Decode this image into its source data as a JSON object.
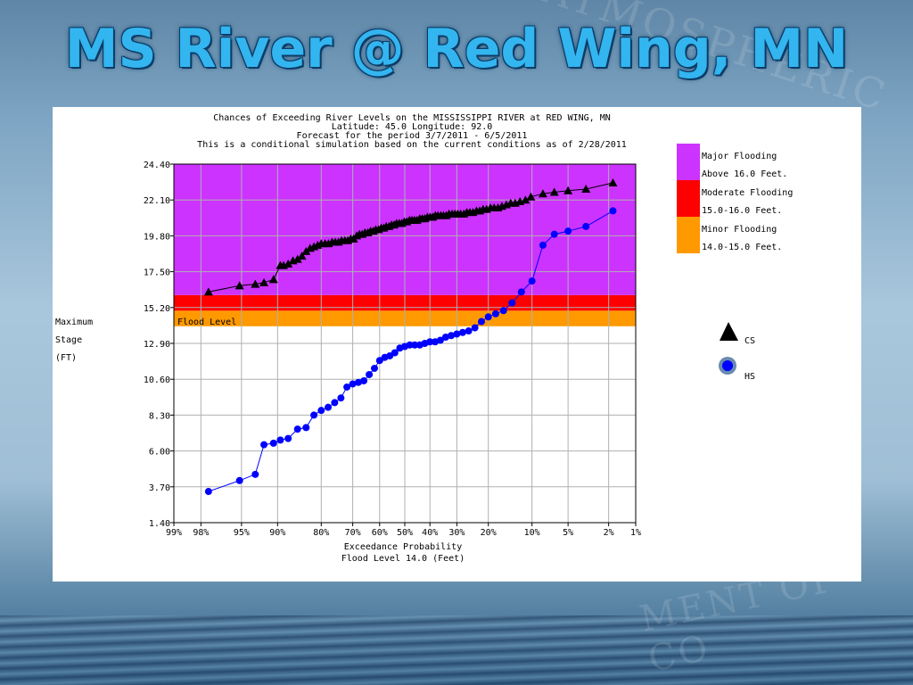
{
  "slide": {
    "title": "MS River @ Red Wing, MN",
    "watermark_top": "ATMOSPHERIC",
    "watermark_bottom": "MENT OF CO"
  },
  "chart_data": {
    "type": "scatter",
    "title_lines": [
      "Chances of Exceeding River Levels on the MISSISSIPPI RIVER at RED WING, MN",
      "Latitude: 45.0     Longitude:  92.0",
      "Forecast for the period 3/7/2011 - 6/5/2011",
      "This is a conditional simulation based on the current conditions as of 2/28/2011"
    ],
    "ylabel_lines": [
      "Maximum",
      "Stage",
      "(FT)"
    ],
    "xlabel_lines": [
      "Exceedance Probability",
      "Flood Level 14.0 (Feet)"
    ],
    "ylim": [
      1.4,
      24.4
    ],
    "yticks": [
      1.4,
      3.7,
      6.0,
      8.3,
      10.6,
      12.9,
      15.2,
      17.5,
      19.8,
      22.1,
      24.4
    ],
    "ytick_labels": [
      "1.40",
      "3.70",
      "6.00",
      "8.30",
      "10.60",
      "12.90",
      "15.20",
      "17.50",
      "19.80",
      "22.10",
      "24.40"
    ],
    "xlim": [
      99,
      1
    ],
    "xscale": "normal-probability",
    "xticks": [
      99,
      98,
      95,
      90,
      80,
      70,
      60,
      50,
      40,
      30,
      20,
      10,
      5,
      2,
      1
    ],
    "xtick_labels": [
      "99%",
      "98%",
      "95%",
      "90%",
      "80%",
      "70%",
      "60%",
      "50%",
      "40%",
      "30%",
      "20%",
      "10%",
      "5%",
      "2%",
      "1%"
    ],
    "grid": true,
    "flood_level": 14.0,
    "flood_level_label": "Flood Level",
    "bands": [
      {
        "from": 14.0,
        "to": 15.0,
        "color": "#ff9900"
      },
      {
        "from": 15.0,
        "to": 16.0,
        "color": "#ff0000"
      },
      {
        "from": 16.0,
        "to": 24.4,
        "color": "#cc33ff"
      }
    ],
    "legend_flood": [
      {
        "line1": "Major Flooding",
        "line2": "Above 16.0 Feet.",
        "color": "#cc33ff"
      },
      {
        "line1": "Moderate Flooding",
        "line2": "15.0-16.0 Feet.",
        "color": "#ff0000"
      },
      {
        "line1": "Minor Flooding",
        "line2": "14.0-15.0 Feet.",
        "color": "#ff9900"
      }
    ],
    "legend_series_placement": "right",
    "series": [
      {
        "name": "CS",
        "marker": "triangle",
        "color": "#000000",
        "x": [
          97.6,
          95.2,
          93.4,
          92.2,
          90.7,
          89.5,
          88.9,
          88.0,
          87.0,
          86.0,
          85.0,
          84.0,
          83.0,
          82.0,
          81.0,
          80.0,
          78.9,
          77.9,
          76.8,
          75.8,
          74.8,
          73.8,
          72.7,
          71.7,
          70.7,
          69.7,
          68.6,
          67.6,
          66.6,
          65.6,
          64.5,
          63.5,
          62.5,
          61.5,
          60.4,
          59.4,
          58.4,
          57.4,
          56.3,
          55.3,
          54.3,
          53.3,
          52.2,
          51.2,
          50.2,
          49.2,
          48.1,
          47.1,
          46.1,
          45.1,
          44.0,
          43.0,
          42.0,
          41.0,
          39.9,
          38.9,
          37.9,
          36.9,
          35.8,
          34.8,
          33.8,
          32.8,
          31.7,
          30.7,
          29.7,
          28.7,
          27.6,
          26.6,
          25.6,
          24.6,
          23.5,
          22.5,
          21.5,
          20.5,
          19.4,
          18.4,
          17.4,
          16.4,
          15.3,
          14.3,
          13.3,
          12.3,
          11.2,
          10.2,
          8.2,
          6.6,
          5.0,
          3.4,
          1.8
        ],
        "y": [
          16.2,
          16.6,
          16.7,
          16.8,
          17.0,
          17.9,
          17.9,
          18.0,
          18.2,
          18.3,
          18.5,
          18.8,
          19.0,
          19.1,
          19.2,
          19.3,
          19.3,
          19.3,
          19.4,
          19.4,
          19.4,
          19.5,
          19.5,
          19.5,
          19.6,
          19.6,
          19.8,
          19.9,
          19.9,
          20.0,
          20.0,
          20.1,
          20.1,
          20.2,
          20.2,
          20.3,
          20.3,
          20.4,
          20.4,
          20.5,
          20.5,
          20.6,
          20.6,
          20.6,
          20.7,
          20.7,
          20.8,
          20.8,
          20.8,
          20.8,
          20.9,
          20.9,
          20.9,
          21.0,
          21.0,
          21.0,
          21.1,
          21.1,
          21.1,
          21.1,
          21.1,
          21.2,
          21.2,
          21.2,
          21.2,
          21.2,
          21.2,
          21.3,
          21.3,
          21.3,
          21.4,
          21.4,
          21.5,
          21.5,
          21.6,
          21.6,
          21.6,
          21.7,
          21.8,
          21.9,
          21.9,
          22.0,
          22.1,
          22.3,
          22.5,
          22.6,
          22.7,
          22.8,
          23.2
        ]
      },
      {
        "name": "HS",
        "marker": "circle",
        "color": "#0000ff",
        "x": [
          97.6,
          95.2,
          93.4,
          92.2,
          90.7,
          89.5,
          88.0,
          86.0,
          84.0,
          82.0,
          80.0,
          78.0,
          76.0,
          74.0,
          72.0,
          70.0,
          68.0,
          66.0,
          64.0,
          62.0,
          60.0,
          58.0,
          56.0,
          54.0,
          52.0,
          50.0,
          48.0,
          46.0,
          44.0,
          42.0,
          40.0,
          38.0,
          36.0,
          34.0,
          32.0,
          30.0,
          28.0,
          26.0,
          24.0,
          22.0,
          20.0,
          18.0,
          16.0,
          14.0,
          12.0,
          10.0,
          8.2,
          6.6,
          5.0,
          3.4,
          1.8
        ],
        "y": [
          3.4,
          4.1,
          4.5,
          6.4,
          6.5,
          6.7,
          6.8,
          7.4,
          7.5,
          8.3,
          8.6,
          8.8,
          9.1,
          9.4,
          10.1,
          10.3,
          10.4,
          10.5,
          10.9,
          11.3,
          11.8,
          12.0,
          12.1,
          12.3,
          12.6,
          12.7,
          12.8,
          12.8,
          12.8,
          12.9,
          13.0,
          13.0,
          13.1,
          13.3,
          13.4,
          13.5,
          13.6,
          13.7,
          13.9,
          14.3,
          14.6,
          14.8,
          15.0,
          15.5,
          16.2,
          16.9,
          19.2,
          19.9,
          20.1,
          20.4,
          21.4
        ]
      }
    ]
  }
}
